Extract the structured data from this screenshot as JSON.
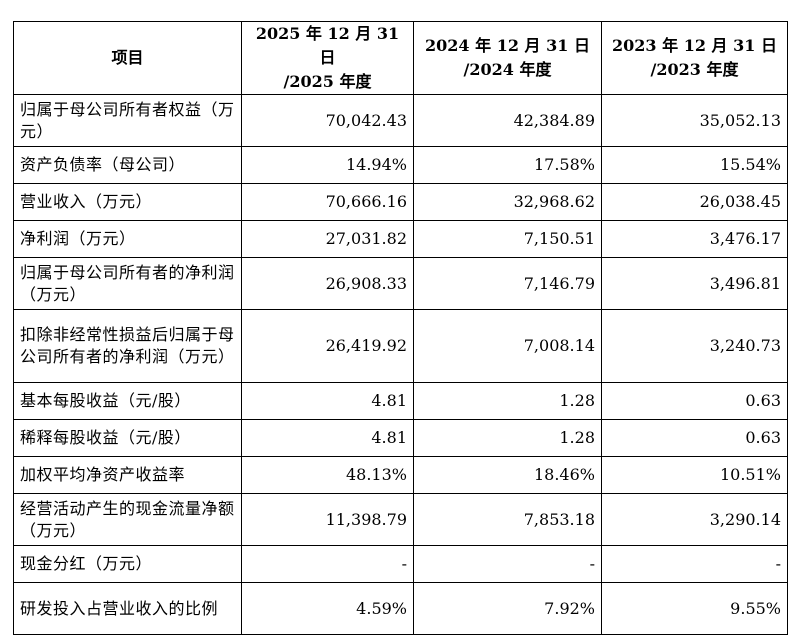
{
  "table": {
    "header": {
      "item": "项目",
      "col1": [
        "2025 年 12 月 31 日",
        "/2025 年度"
      ],
      "col2": [
        "2024 年 12 月 31 日",
        "/2024 年度"
      ],
      "col3": [
        "2023 年 12 月 31 日",
        "/2023 年度"
      ]
    },
    "rows": [
      {
        "label": "归属于母公司所有者权益（万元）",
        "v2025": "70,042.43",
        "v2024": "42,384.89",
        "v2023": "35,052.13"
      },
      {
        "label": "资产负债率（母公司）",
        "v2025": "14.94%",
        "v2024": "17.58%",
        "v2023": "15.54%"
      },
      {
        "label": "营业收入（万元）",
        "v2025": "70,666.16",
        "v2024": "32,968.62",
        "v2023": "26,038.45"
      },
      {
        "label": "净利润（万元）",
        "v2025": "27,031.82",
        "v2024": "7,150.51",
        "v2023": "3,476.17"
      },
      {
        "label": "归属于母公司所有者的净利润（万元）",
        "v2025": "26,908.33",
        "v2024": "7,146.79",
        "v2023": "3,496.81"
      },
      {
        "label": "扣除非经常性损益后归属于母公司所有者的净利润（万元）",
        "v2025": "26,419.92",
        "v2024": "7,008.14",
        "v2023": "3,240.73"
      },
      {
        "label": "基本每股收益（元/股）",
        "v2025": "4.81",
        "v2024": "1.28",
        "v2023": "0.63"
      },
      {
        "label": "稀释每股收益（元/股）",
        "v2025": "4.81",
        "v2024": "1.28",
        "v2023": "0.63"
      },
      {
        "label": "加权平均净资产收益率",
        "v2025": "48.13%",
        "v2024": "18.46%",
        "v2023": "10.51%"
      },
      {
        "label": "经营活动产生的现金流量净额（万元）",
        "v2025": "11,398.79",
        "v2024": "7,853.18",
        "v2023": "3,290.14"
      },
      {
        "label": "现金分红（万元）",
        "v2025": "-",
        "v2024": "-",
        "v2023": "-"
      },
      {
        "label": "研发投入占营业收入的比例",
        "v2025": "4.59%",
        "v2024": "7.92%",
        "v2023": "9.55%"
      }
    ]
  }
}
